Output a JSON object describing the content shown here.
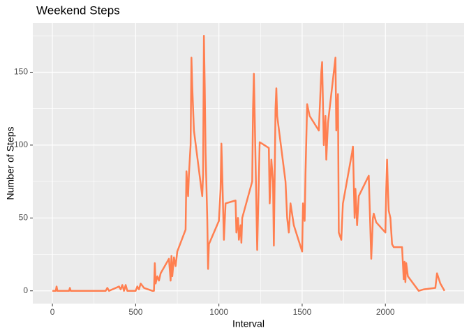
{
  "chart_data": {
    "type": "line",
    "title": "Weekend Steps",
    "x_label": "Interval",
    "y_label": "Number of Steps",
    "x": [
      0,
      20,
      25,
      30,
      100,
      105,
      110,
      200,
      300,
      320,
      330,
      340,
      400,
      410,
      420,
      430,
      440,
      450,
      500,
      510,
      520,
      530,
      550,
      600,
      610,
      615,
      620,
      630,
      640,
      650,
      700,
      710,
      715,
      720,
      730,
      740,
      750,
      800,
      805,
      815,
      820,
      830,
      835,
      840,
      850,
      900,
      905,
      910,
      915,
      920,
      930,
      935,
      940,
      1000,
      1010,
      1015,
      1020,
      1030,
      1040,
      1100,
      1105,
      1115,
      1120,
      1130,
      1135,
      1140,
      1200,
      1205,
      1210,
      1215,
      1230,
      1245,
      1300,
      1305,
      1315,
      1325,
      1330,
      1340,
      1345,
      1350,
      1400,
      1410,
      1420,
      1430,
      1450,
      1500,
      1505,
      1515,
      1520,
      1530,
      1545,
      1600,
      1615,
      1620,
      1630,
      1640,
      1645,
      1655,
      1700,
      1705,
      1715,
      1720,
      1735,
      1745,
      1800,
      1805,
      1815,
      1820,
      1830,
      1840,
      1900,
      1905,
      1915,
      1925,
      1930,
      1945,
      2000,
      2005,
      2010,
      2015,
      2020,
      2030,
      2040,
      2050,
      2100,
      2110,
      2115,
      2120,
      2125,
      2135,
      2200,
      2230,
      2300,
      2310,
      2330,
      2355
    ],
    "series": [
      {
        "name": "steps",
        "color": "#ff7f50",
        "values": [
          0,
          0,
          3,
          0,
          0,
          2,
          0,
          0,
          0,
          0,
          2,
          0,
          3,
          1,
          4,
          0,
          4,
          0,
          0,
          3,
          1,
          5,
          2,
          0,
          0,
          19,
          5,
          10,
          7,
          12,
          22,
          7,
          24,
          10,
          23,
          17,
          27,
          42,
          82,
          65,
          80,
          100,
          160,
          140,
          110,
          65,
          80,
          175,
          140,
          95,
          50,
          15,
          32,
          48,
          70,
          101,
          80,
          35,
          60,
          62,
          40,
          50,
          35,
          45,
          33,
          50,
          75,
          125,
          149,
          120,
          28,
          102,
          98,
          60,
          90,
          75,
          31,
          125,
          139,
          120,
          75,
          50,
          40,
          60,
          45,
          27,
          60,
          48,
          80,
          128,
          120,
          110,
          150,
          157,
          100,
          120,
          90,
          115,
          160,
          110,
          135,
          40,
          35,
          60,
          95,
          99,
          50,
          70,
          45,
          65,
          79,
          60,
          22,
          50,
          53,
          47,
          40,
          70,
          90,
          70,
          55,
          50,
          32,
          30,
          30,
          8,
          20,
          6,
          19,
          10,
          0,
          1,
          2,
          12,
          5,
          0
        ]
      }
    ],
    "xlim": [
      -117.75,
      2472.75
    ],
    "ylim": [
      -8.75,
      183.75
    ],
    "xticks": [
      0,
      500,
      1000,
      1500,
      2000
    ],
    "yticks": [
      0,
      50,
      100,
      150
    ],
    "minor_xticks": [
      250,
      750,
      1250,
      1750,
      2250
    ],
    "minor_yticks": [
      25,
      75,
      125,
      175
    ],
    "grid": true
  }
}
